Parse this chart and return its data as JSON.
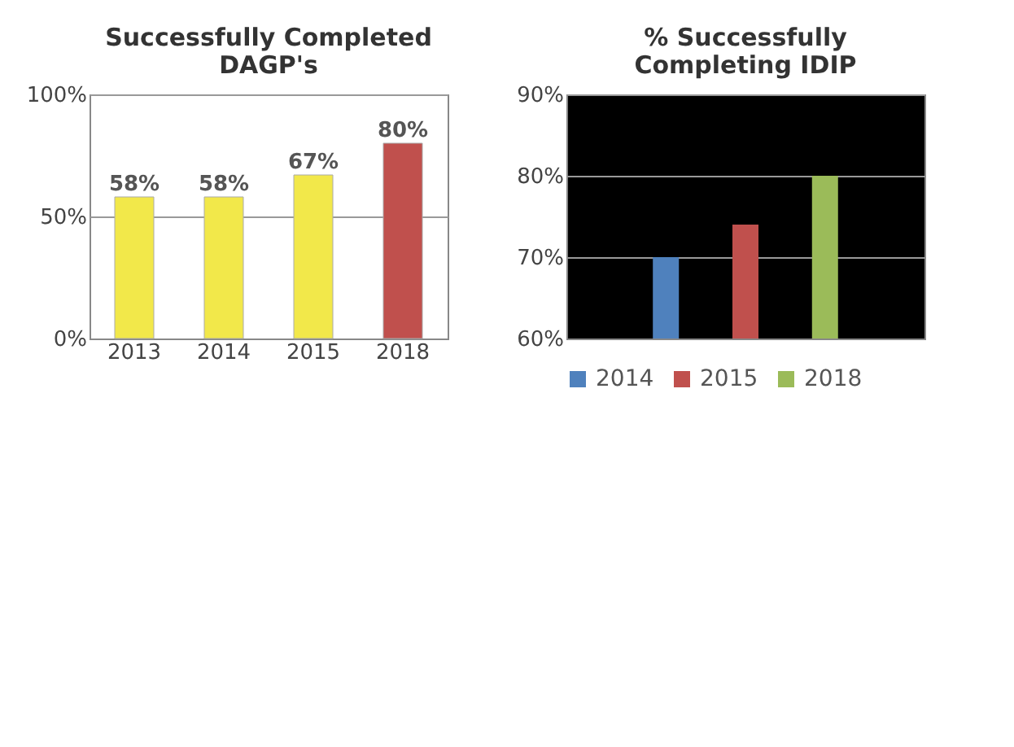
{
  "chart_data": [
    {
      "type": "bar",
      "title": "Successfully Completed\nDAGP's",
      "categories": [
        "2013",
        "2014",
        "2015",
        "2018"
      ],
      "values": [
        58,
        58,
        67,
        80
      ],
      "colors": [
        "#f2e84a",
        "#f2e84a",
        "#f2e84a",
        "#c0504d"
      ],
      "value_labels": [
        "58%",
        "58%",
        "67%",
        "80%"
      ],
      "ylim": [
        0,
        100
      ],
      "yticks": [
        {
          "value": 0,
          "label": "0%"
        },
        {
          "value": 50,
          "label": "50%"
        },
        {
          "value": 100,
          "label": "100%"
        }
      ],
      "grid": "y"
    },
    {
      "type": "bar",
      "title": "% Successfully\nCompleting IDIP",
      "categories": [
        null
      ],
      "series": [
        {
          "name": "2014",
          "color": "#4f81bd",
          "values": [
            70
          ]
        },
        {
          "name": "2015",
          "color": "#c0504d",
          "values": [
            74
          ]
        },
        {
          "name": "2018",
          "color": "#9bbb59",
          "values": [
            80
          ]
        }
      ],
      "legend": "bottom",
      "ylim": [
        60,
        90
      ],
      "yticks": [
        {
          "value": 60,
          "label": "60%"
        },
        {
          "value": 70,
          "label": "70%"
        },
        {
          "value": 80,
          "label": "80%"
        },
        {
          "value": 90,
          "label": "90%"
        }
      ],
      "grid": "y"
    }
  ]
}
